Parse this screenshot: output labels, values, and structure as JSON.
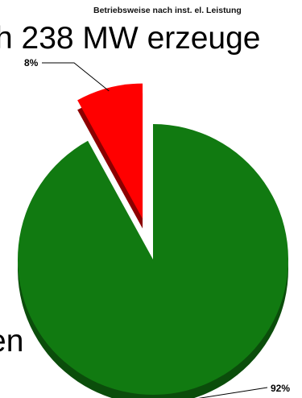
{
  "background_text": {
    "line_top": "h 238 MW erzeuge",
    "line_bottom": "en"
  },
  "colors": {
    "slice_red": "#ff0000",
    "slice_red_side": "#8c0000",
    "slice_green": "#117a11",
    "slice_green_side": "#0b4d0b",
    "leader": "#000000"
  },
  "chart_data": {
    "type": "pie",
    "title": "Betriebsweise nach inst. el. Leistung",
    "exploded": true,
    "three_d": true,
    "slices": [
      {
        "label": "8%",
        "value": 8,
        "color": "#ff0000"
      },
      {
        "label": "92%",
        "value": 92,
        "color": "#117a11"
      }
    ]
  }
}
